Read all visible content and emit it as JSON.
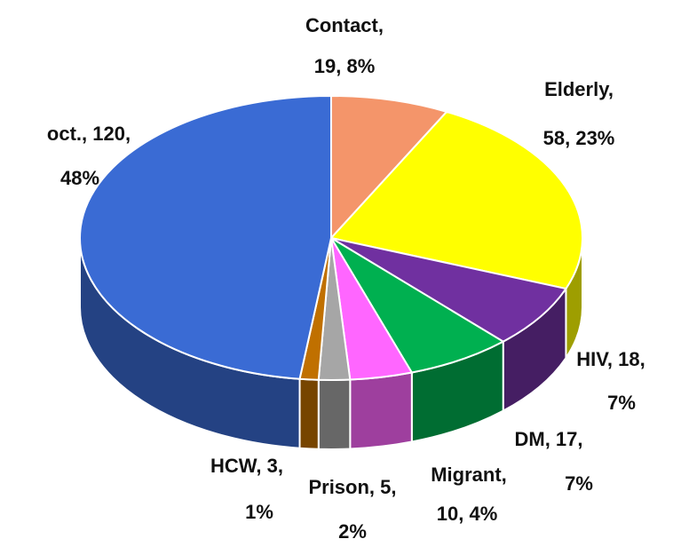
{
  "chart_data": {
    "type": "pie",
    "categories": [
      "Contact",
      "Elderly",
      "HIV",
      "DM",
      "Migrant",
      "Prison",
      "HCW",
      "oct."
    ],
    "values": [
      19,
      58,
      18,
      17,
      10,
      5,
      3,
      120
    ],
    "percents": [
      8,
      23,
      7,
      7,
      4,
      2,
      1,
      48
    ],
    "percent_labels": [
      "8%",
      "23%",
      "7%",
      "7%",
      "4%",
      "2%",
      "1%",
      "48%"
    ],
    "separator": ", ",
    "colors": [
      "#f4956a",
      "#ffff00",
      "#7030a0",
      "#00b050",
      "#ff66ff",
      "#a6a6a6",
      "#c07000",
      "#3a6bd4"
    ]
  }
}
